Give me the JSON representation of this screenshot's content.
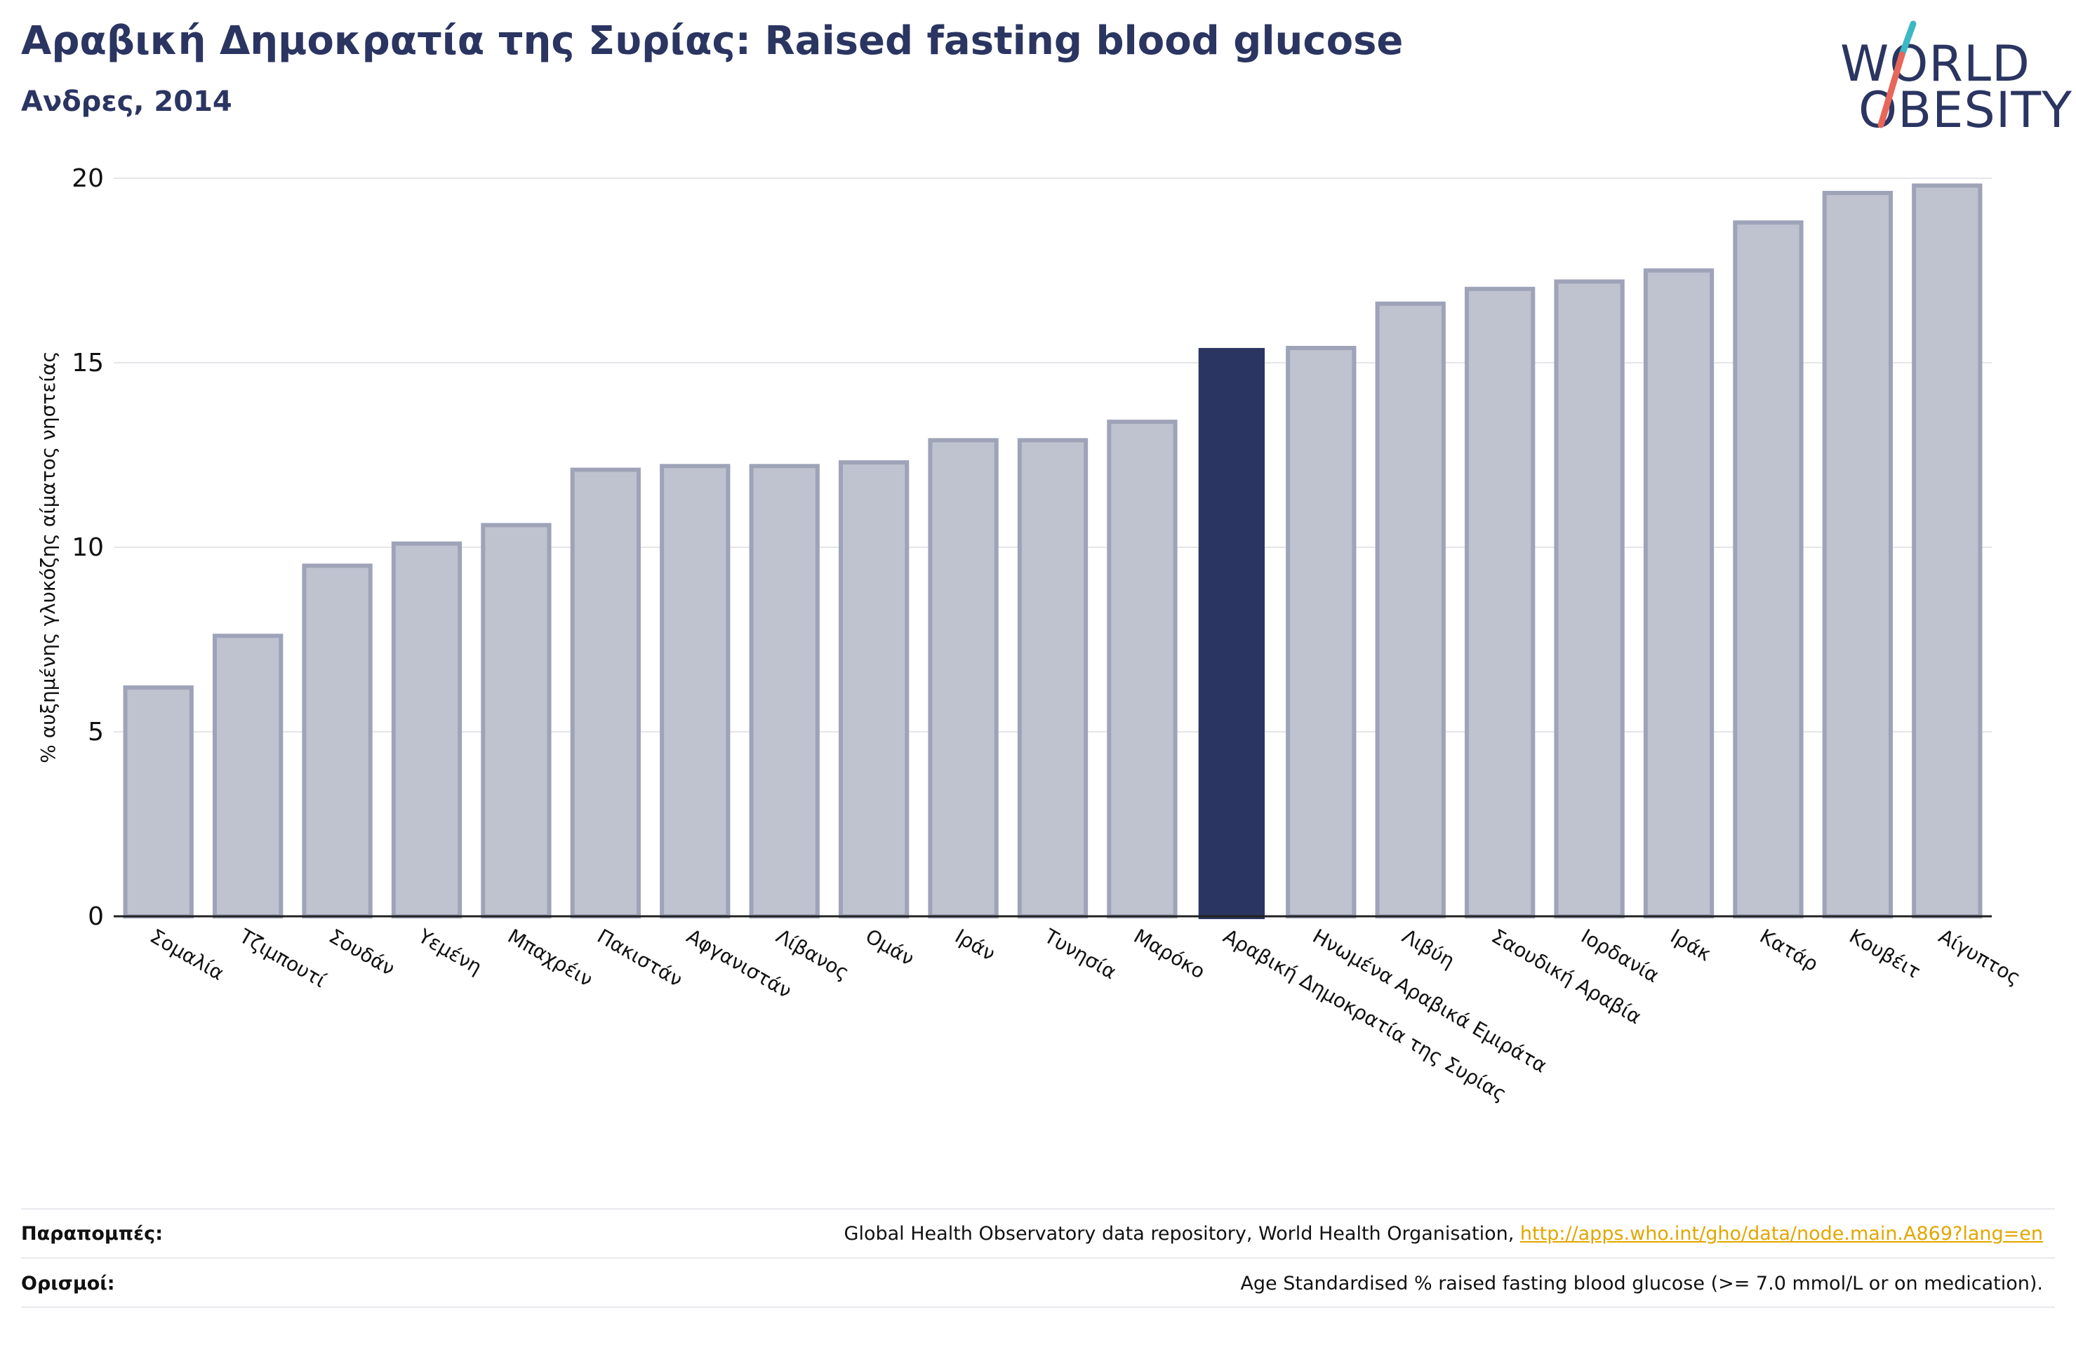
{
  "header": {
    "title": "Αραβική Δημοκρατία της Συρίας: Raised fasting blood glucose",
    "subtitle": "Ανδρες, 2014"
  },
  "logo": {
    "line1": "WORLD",
    "line2": "OBESITY"
  },
  "colors": {
    "highlight": "#2b3561",
    "bar_fill": "#bfc2cf",
    "bar_stroke": "#9ea3b8",
    "logo_teal": "#3bb8c3",
    "logo_coral": "#e8665a",
    "link": "#e3a600"
  },
  "chart_data": {
    "type": "bar",
    "title": "Αραβική Δημοκρατία της Συρίας: Raised fasting blood glucose",
    "subtitle": "Ανδρες, 2014",
    "xlabel": "",
    "ylabel": "% αυξημένης γλυκόζης αίματος νηστείας",
    "ylim": [
      0,
      20
    ],
    "yticks": [
      0,
      5,
      10,
      15,
      20
    ],
    "grid": true,
    "highlight": "Αραβική Δημοκρατία της Συρίας",
    "categories": [
      "Σομαλία",
      "Τζιμπουτί",
      "Σουδάν",
      "Υεμένη",
      "Μπαχρέιν",
      "Πακιστάν",
      "Αφγανιστάν",
      "Λίβανος",
      "Ομάν",
      "Ιράν",
      "Τυνησία",
      "Μαρόκο",
      "Αραβική Δημοκρατία της Συρίας",
      "Ηνωμένα Αραβικά Εμιράτα",
      "Λιβύη",
      "Σαουδική Αραβία",
      "Ιορδανία",
      "Ιράκ",
      "Κατάρ",
      "Κουβέιτ",
      "Αίγυπτος"
    ],
    "values": [
      6.2,
      7.6,
      9.5,
      10.1,
      10.6,
      12.1,
      12.2,
      12.2,
      12.3,
      12.9,
      12.9,
      13.4,
      15.4,
      15.4,
      16.6,
      17.0,
      17.2,
      17.5,
      18.8,
      19.6,
      19.8
    ]
  },
  "footer": {
    "references_label": "Παραπομπές:",
    "references_text": "Global Health Observatory data repository, World Health Organisation, ",
    "references_link": "http://apps.who.int/gho/data/node.main.A869?lang=en",
    "definitions_label": "Ορισμοί:",
    "definitions_text": "Age Standardised % raised fasting blood glucose (>= 7.0 mmol/L or on medication)."
  }
}
